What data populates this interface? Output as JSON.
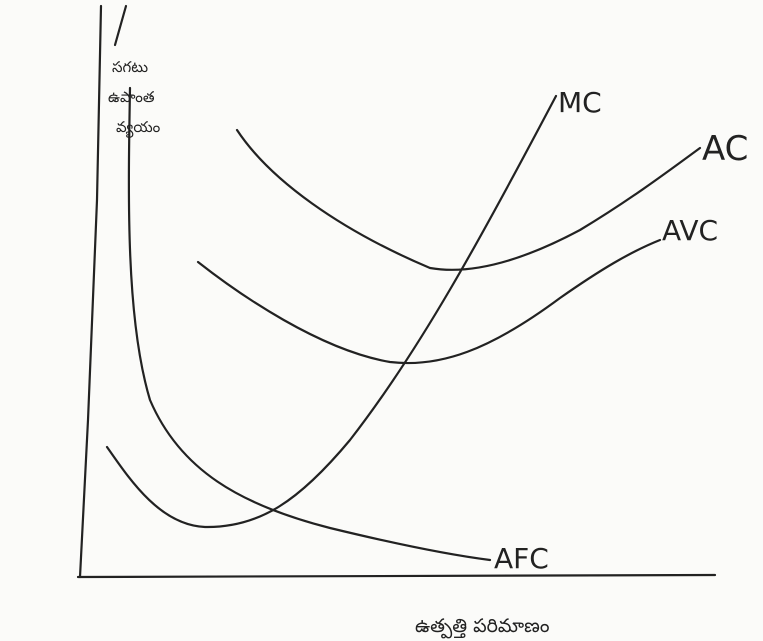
{
  "curves": {
    "mc": "MC",
    "ac": "AC",
    "avc": "AVC",
    "afc": "AFC"
  },
  "y_axis_label": [
    "సగటు",
    "ఉపాంత",
    "వ్యయం"
  ],
  "x_axis_label": "ఉత్పత్తి పరిమాణం"
}
